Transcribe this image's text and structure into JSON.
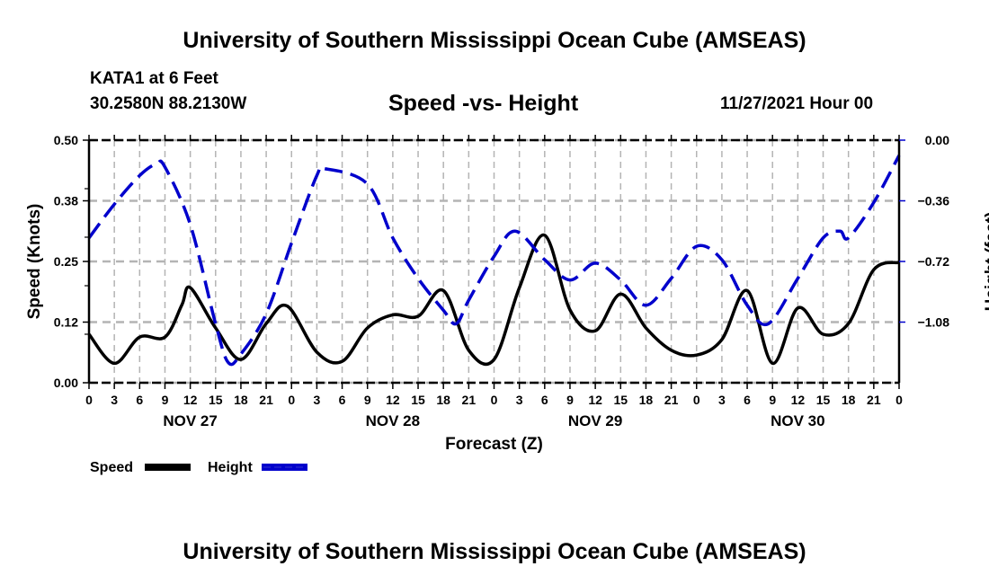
{
  "header": {
    "main_title": "University of Southern Mississippi Ocean Cube (AMSEAS)",
    "station": "KATA1 at 6 Feet",
    "coordinates": "30.2580N  88.2130W",
    "subtitle": "Speed -vs- Height",
    "datetime": "11/27/2021 Hour 00",
    "footer_title": "University of Southern Mississippi Ocean Cube (AMSEAS)"
  },
  "colors": {
    "speed": "#000000",
    "height": "#0000cc",
    "grid": "#b4b4b4"
  },
  "chart_data": {
    "type": "line",
    "title": "Speed -vs- Height",
    "xlabel": "Forecast (Z)",
    "ylabel": "Speed (Knots)",
    "y2label": "Height (feet)",
    "xlim_hours": [
      0,
      96
    ],
    "ylim": [
      0,
      0.5
    ],
    "y2lim": [
      -1.44,
      0
    ],
    "grid": true,
    "legend_placement": "bottom-left",
    "x_tick_labels": [
      "0",
      "3",
      "6",
      "9",
      "12",
      "15",
      "18",
      "21",
      "0",
      "3",
      "6",
      "9",
      "12",
      "15",
      "18",
      "21",
      "0",
      "3",
      "6",
      "9",
      "12",
      "15",
      "18",
      "21",
      "0",
      "3",
      "6",
      "9",
      "12",
      "15",
      "18",
      "21",
      "0"
    ],
    "day_labels": [
      {
        "label": "NOV 27",
        "center_hour": 12
      },
      {
        "label": "NOV 28",
        "center_hour": 36
      },
      {
        "label": "NOV 29",
        "center_hour": 60
      },
      {
        "label": "NOV 30",
        "center_hour": 84
      }
    ],
    "y_tick_labels": [
      {
        "value": 0,
        "label": "0.00"
      },
      {
        "value": 0.125,
        "label": "0.12"
      },
      {
        "value": 0.25,
        "label": "0.25"
      },
      {
        "value": 0.375,
        "label": "0.38"
      },
      {
        "value": 0.5,
        "label": "0.50"
      }
    ],
    "y2_tick_labels": [
      {
        "value": -1.08,
        "label": "−1.08"
      },
      {
        "value": -0.72,
        "label": "−0.72"
      },
      {
        "value": -0.36,
        "label": "−0.36"
      },
      {
        "value": 0,
        "label": "0.00"
      }
    ],
    "series": [
      {
        "name": "Speed",
        "axis": "left",
        "style": "solid",
        "points": [
          [
            0,
            0.1
          ],
          [
            3,
            0.04
          ],
          [
            6,
            0.094
          ],
          [
            9,
            0.094
          ],
          [
            11,
            0.16
          ],
          [
            12,
            0.196
          ],
          [
            15,
            0.113
          ],
          [
            18,
            0.048
          ],
          [
            21,
            0.122
          ],
          [
            23.5,
            0.158
          ],
          [
            27,
            0.063
          ],
          [
            30,
            0.044
          ],
          [
            33,
            0.113
          ],
          [
            36,
            0.14
          ],
          [
            39,
            0.137
          ],
          [
            42,
            0.19
          ],
          [
            45,
            0.067
          ],
          [
            48,
            0.048
          ],
          [
            51,
            0.196
          ],
          [
            54,
            0.304
          ],
          [
            57,
            0.15
          ],
          [
            60,
            0.107
          ],
          [
            63,
            0.183
          ],
          [
            66,
            0.113
          ],
          [
            69,
            0.067
          ],
          [
            72,
            0.057
          ],
          [
            75,
            0.089
          ],
          [
            78,
            0.19
          ],
          [
            81,
            0.04
          ],
          [
            84,
            0.154
          ],
          [
            87,
            0.1
          ],
          [
            90,
            0.122
          ],
          [
            93,
            0.233
          ],
          [
            96,
            0.248
          ]
        ]
      },
      {
        "name": "Height",
        "axis": "right",
        "style": "dashed",
        "points": [
          [
            0,
            -0.58
          ],
          [
            3,
            -0.38
          ],
          [
            6,
            -0.21
          ],
          [
            8,
            -0.14
          ],
          [
            9,
            -0.16
          ],
          [
            12,
            -0.5
          ],
          [
            15,
            -1.09
          ],
          [
            16.5,
            -1.32
          ],
          [
            18,
            -1.27
          ],
          [
            21,
            -1.03
          ],
          [
            24,
            -0.61
          ],
          [
            27,
            -0.21
          ],
          [
            28,
            -0.17
          ],
          [
            33,
            -0.26
          ],
          [
            36,
            -0.58
          ],
          [
            39,
            -0.82
          ],
          [
            42,
            -1.01
          ],
          [
            43.5,
            -1.09
          ],
          [
            45,
            -0.95
          ],
          [
            48,
            -0.69
          ],
          [
            50.5,
            -0.54
          ],
          [
            54,
            -0.71
          ],
          [
            57,
            -0.83
          ],
          [
            60,
            -0.73
          ],
          [
            63,
            -0.83
          ],
          [
            66,
            -0.98
          ],
          [
            69,
            -0.82
          ],
          [
            72,
            -0.63
          ],
          [
            75,
            -0.71
          ],
          [
            78,
            -0.98
          ],
          [
            80.5,
            -1.09
          ],
          [
            84,
            -0.82
          ],
          [
            87,
            -0.58
          ],
          [
            89,
            -0.54
          ],
          [
            90,
            -0.58
          ],
          [
            93,
            -0.37
          ],
          [
            96,
            -0.09
          ]
        ]
      }
    ],
    "legend": [
      {
        "label": "Speed",
        "style": "solid"
      },
      {
        "label": "Height",
        "style": "dashed"
      }
    ]
  }
}
